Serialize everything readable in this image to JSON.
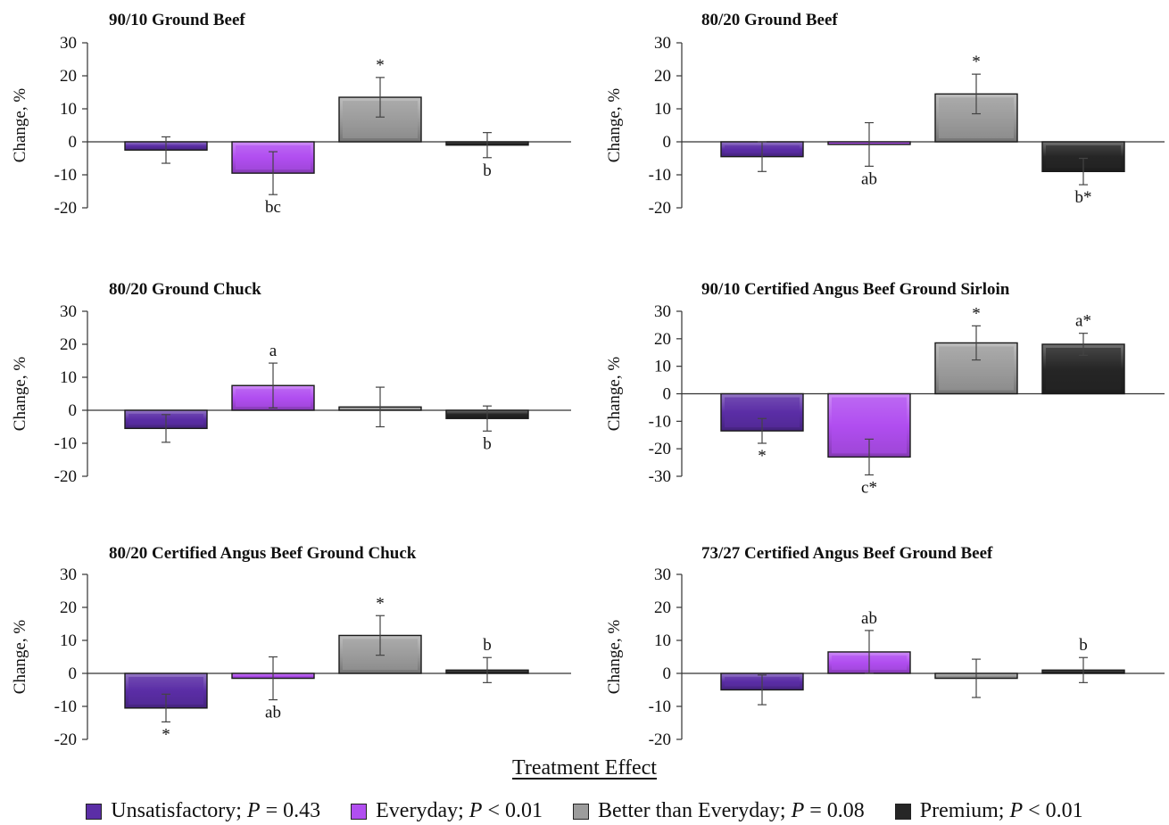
{
  "x_axis_title": "Treatment Effect",
  "legend": [
    {
      "label": "Unsatisfactory; ",
      "p_label": "P",
      "p_value": " = 0.43",
      "color": "#5b2ea6"
    },
    {
      "label": "Everyday; ",
      "p_label": "P",
      "p_value": " < 0.01",
      "color": "#b14ef0"
    },
    {
      "label": "Better than Everyday; ",
      "p_label": "P",
      "p_value": " = 0.08",
      "color": "#9c9c9c"
    },
    {
      "label": "Premium; ",
      "p_label": "P",
      "p_value": " < 0.01",
      "color": "#262626"
    }
  ],
  "chart_data": [
    {
      "type": "bar",
      "title": "90/10 Ground Beef",
      "ylabel": "Change, %",
      "ylim": [
        -20,
        30
      ],
      "yticks": [
        30,
        20,
        10,
        0,
        -10,
        -20
      ],
      "categories": [
        "Unsatisfactory",
        "Everyday",
        "Better than Everyday",
        "Premium"
      ],
      "values": [
        -2.5,
        -9.5,
        13.5,
        -1
      ],
      "errors": [
        4,
        6.5,
        6,
        3.8
      ],
      "annotations": [
        "",
        "bc",
        "*",
        "b"
      ]
    },
    {
      "type": "bar",
      "title": "80/20 Ground Beef",
      "ylabel": "Change, %",
      "ylim": [
        -20,
        30
      ],
      "yticks": [
        30,
        20,
        10,
        0,
        -10,
        -20
      ],
      "categories": [
        "Unsatisfactory",
        "Everyday",
        "Better than Everyday",
        "Premium"
      ],
      "values": [
        -4.5,
        -0.8,
        14.5,
        -9
      ],
      "errors": [
        4.5,
        6.6,
        6,
        4
      ],
      "annotations": [
        "",
        "ab",
        "*",
        "b*"
      ]
    },
    {
      "type": "bar",
      "title": "80/20 Ground Chuck",
      "ylabel": "Change, %",
      "ylim": [
        -20,
        30
      ],
      "yticks": [
        30,
        20,
        10,
        0,
        -10,
        -20
      ],
      "categories": [
        "Unsatisfactory",
        "Everyday",
        "Better than Everyday",
        "Premium"
      ],
      "values": [
        -5.5,
        7.5,
        1,
        -2.5
      ],
      "errors": [
        4.2,
        6.8,
        6,
        3.8
      ],
      "annotations": [
        "",
        "a",
        "",
        "b"
      ]
    },
    {
      "type": "bar",
      "title": "90/10 Certified Angus Beef Ground Sirloin",
      "ylabel": "Change, %",
      "ylim": [
        -30,
        30
      ],
      "yticks": [
        30,
        20,
        10,
        0,
        -10,
        -20,
        -30
      ],
      "categories": [
        "Unsatisfactory",
        "Everyday",
        "Better than Everyday",
        "Premium"
      ],
      "values": [
        -13.5,
        -23,
        18.5,
        18
      ],
      "errors": [
        4.5,
        6.5,
        6.2,
        4
      ],
      "annotations": [
        "*",
        "c*",
        "*",
        "a*"
      ]
    },
    {
      "type": "bar",
      "title": "80/20 Certified Angus Beef Ground Chuck",
      "ylabel": "Change, %",
      "ylim": [
        -20,
        30
      ],
      "yticks": [
        30,
        20,
        10,
        0,
        -10,
        -20
      ],
      "categories": [
        "Unsatisfactory",
        "Everyday",
        "Better than Everyday",
        "Premium"
      ],
      "values": [
        -10.5,
        -1.5,
        11.5,
        1
      ],
      "errors": [
        4.2,
        6.5,
        6,
        3.8
      ],
      "annotations": [
        "*",
        "ab",
        "*",
        "b"
      ]
    },
    {
      "type": "bar",
      "title": "73/27 Certified Angus Beef Ground Beef",
      "ylabel": "Change, %",
      "ylim": [
        -20,
        30
      ],
      "yticks": [
        30,
        20,
        10,
        0,
        -10,
        -20
      ],
      "categories": [
        "Unsatisfactory",
        "Everyday",
        "Better than Everyday",
        "Premium"
      ],
      "values": [
        -5,
        6.5,
        -1.5,
        1
      ],
      "errors": [
        4.5,
        6.5,
        5.8,
        3.8
      ],
      "annotations": [
        "",
        "ab",
        "",
        "b"
      ]
    }
  ]
}
